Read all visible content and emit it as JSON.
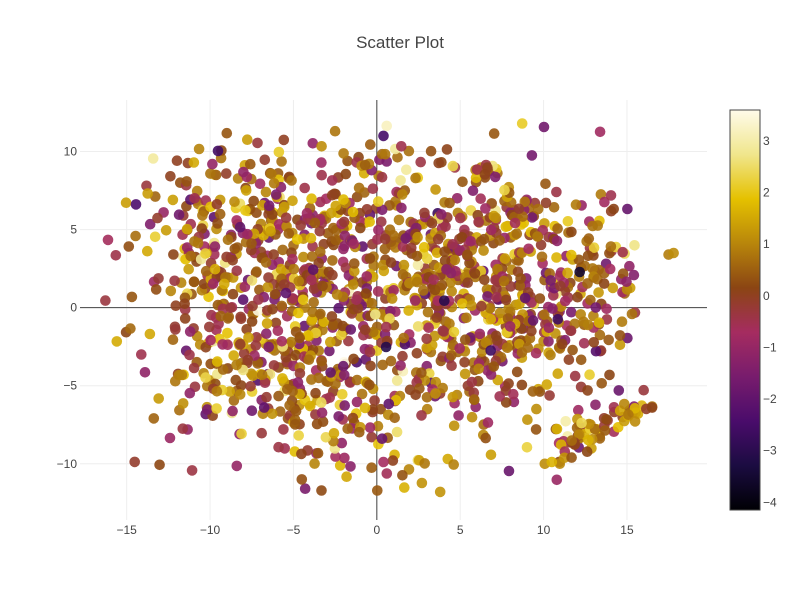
{
  "chart_data": {
    "type": "scatter",
    "title": "Scatter Plot",
    "xlabel": "",
    "ylabel": "",
    "xlim": [
      -17.8,
      19.8
    ],
    "ylim": [
      -13.6,
      13.3
    ],
    "xticks": [
      -15,
      -10,
      -5,
      0,
      5,
      10,
      15
    ],
    "yticks": [
      -10,
      -5,
      0,
      5,
      10
    ],
    "x_tick_labels": [
      "−15",
      "−10",
      "−5",
      "0",
      "5",
      "10",
      "15"
    ],
    "y_tick_labels": [
      "−10",
      "−5",
      "0",
      "5",
      "10"
    ],
    "grid": true,
    "zero_lines": true,
    "colorbar": {
      "range": [
        -4.15,
        3.6
      ],
      "ticks": [
        3,
        2,
        1,
        0,
        -1,
        -2,
        -3,
        -4
      ],
      "tick_labels": [
        "3",
        "2",
        "1",
        "0",
        "−1",
        "−2",
        "−3",
        "−4"
      ],
      "colorscale": [
        "#000004",
        "#1b0c41",
        "#4a0c6b",
        "#781c6d",
        "#a52c60",
        "#8b4513",
        "#b8860b",
        "#e5c100",
        "#f0e68c",
        "#fffbea"
      ]
    },
    "point_count_estimate": 1600,
    "clusters": [
      {
        "cx": -6.0,
        "cy": 4.5,
        "sx": 4.5,
        "sy": 3.2,
        "n": 420
      },
      {
        "cx": -5.5,
        "cy": -2.8,
        "sx": 4.2,
        "sy": 3.0,
        "n": 380
      },
      {
        "cx": 5.5,
        "cy": 4.0,
        "sx": 4.0,
        "sy": 3.2,
        "n": 330
      },
      {
        "cx": 6.0,
        "cy": -1.5,
        "sx": 3.8,
        "sy": 3.4,
        "n": 300
      },
      {
        "cx": 12.0,
        "cy": 1.5,
        "sx": 2.5,
        "sy": 2.5,
        "n": 110
      },
      {
        "cx": -2.0,
        "cy": -8.5,
        "sx": 2.5,
        "sy": 1.4,
        "n": 50
      }
    ],
    "elongated_cluster": {
      "x_start": 10.5,
      "y_start": -9.5,
      "x_end": 16.0,
      "y_end": -6.2,
      "n": 70
    },
    "outliers": [
      {
        "x": 17.5,
        "y": 3.4,
        "c": 0.9
      },
      {
        "x": 17.8,
        "y": 3.5,
        "c": 1.1
      },
      {
        "x": 0.4,
        "y": 11.0,
        "c": -2.5
      },
      {
        "x": -2.5,
        "y": 11.3,
        "c": 0.8
      },
      {
        "x": 3.8,
        "y": -11.8,
        "c": 1.2
      },
      {
        "x": -4.5,
        "y": -11.0,
        "c": 0.3
      }
    ]
  }
}
